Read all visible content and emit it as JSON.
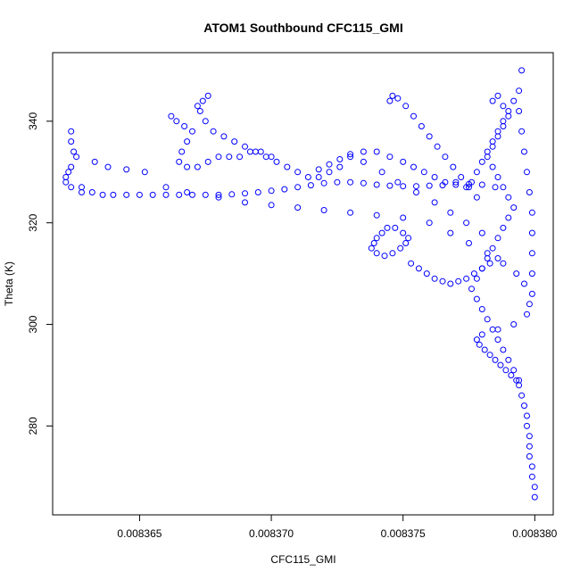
{
  "chart_data": {
    "type": "scatter",
    "title": "ATOM1 Southbound CFC115_GMI",
    "xlabel": "CFC115_GMI",
    "ylabel": "Theta (K)",
    "xlim": [
      0.0083617,
      0.0083807
    ],
    "ylim": [
      262.5,
      353.5
    ],
    "xticks": [
      0.008365,
      0.00837,
      0.008375,
      0.00838
    ],
    "xtick_labels": [
      "0.008365",
      "0.008370",
      "0.008375",
      "0.008380"
    ],
    "yticks": [
      280,
      300,
      320,
      340
    ],
    "ytick_labels": [
      "280",
      "300",
      "320",
      "340"
    ],
    "grid": false,
    "marker": "open-circle",
    "color": "#0000ff",
    "series": [
      {
        "points": [
          [
            0.00838,
            266
          ],
          [
            0.00838,
            268
          ],
          [
            0.0083799,
            270
          ],
          [
            0.0083799,
            272
          ],
          [
            0.0083798,
            274
          ],
          [
            0.0083798,
            276
          ],
          [
            0.0083798,
            278
          ],
          [
            0.0083797,
            280
          ],
          [
            0.0083797,
            282
          ],
          [
            0.0083796,
            284
          ],
          [
            0.0083795,
            286
          ],
          [
            0.0083794,
            288
          ],
          [
            0.0083793,
            289
          ],
          [
            0.0083791,
            290
          ],
          [
            0.0083789,
            291
          ],
          [
            0.0083787,
            292
          ],
          [
            0.0083785,
            293
          ],
          [
            0.0083783,
            294
          ],
          [
            0.0083781,
            295
          ],
          [
            0.0083779,
            296
          ],
          [
            0.0083778,
            297
          ],
          [
            0.008378,
            298
          ],
          [
            0.0083786,
            299
          ],
          [
            0.0083792,
            300
          ],
          [
            0.0083797,
            302
          ],
          [
            0.0083798,
            304
          ],
          [
            0.0083799,
            306
          ],
          [
            0.0083799,
            310
          ],
          [
            0.0083799,
            314
          ],
          [
            0.0083799,
            318
          ],
          [
            0.0083799,
            322
          ],
          [
            0.0083798,
            326
          ],
          [
            0.0083797,
            330
          ],
          [
            0.0083796,
            334
          ],
          [
            0.0083795,
            338
          ],
          [
            0.0083794,
            342
          ],
          [
            0.0083794,
            346
          ],
          [
            0.0083795,
            350
          ],
          [
            0.0083792,
            344
          ],
          [
            0.008379,
            342
          ],
          [
            0.0083788,
            340
          ],
          [
            0.0083786,
            338
          ],
          [
            0.0083784,
            336
          ],
          [
            0.0083782,
            334
          ],
          [
            0.008378,
            332
          ],
          [
            0.0083778,
            330
          ],
          [
            0.0083776,
            328
          ],
          [
            0.0083774,
            327
          ],
          [
            0.008377,
            328
          ],
          [
            0.0083766,
            328
          ],
          [
            0.0083762,
            329
          ],
          [
            0.0083758,
            330
          ],
          [
            0.0083754,
            331
          ],
          [
            0.008375,
            332
          ],
          [
            0.0083745,
            333
          ],
          [
            0.008374,
            334
          ],
          [
            0.0083735,
            334
          ],
          [
            0.008373,
            333
          ],
          [
            0.0083726,
            331
          ],
          [
            0.0083722,
            330
          ],
          [
            0.0083718,
            329
          ],
          [
            0.0083714,
            329
          ],
          [
            0.008371,
            330
          ],
          [
            0.0083706,
            331
          ],
          [
            0.0083702,
            332
          ],
          [
            0.0083698,
            333
          ],
          [
            0.0083694,
            334
          ],
          [
            0.008369,
            335
          ],
          [
            0.0083686,
            336
          ],
          [
            0.0083682,
            337
          ],
          [
            0.0083678,
            338
          ],
          [
            0.0083675,
            340
          ],
          [
            0.0083673,
            342
          ],
          [
            0.0083672,
            343
          ],
          [
            0.0083674,
            344
          ],
          [
            0.0083676,
            345
          ],
          [
            0.0083662,
            341
          ],
          [
            0.0083664,
            340
          ],
          [
            0.0083667,
            339
          ],
          [
            0.008367,
            338
          ],
          [
            0.0083668,
            336
          ],
          [
            0.0083666,
            334
          ],
          [
            0.0083665,
            332
          ],
          [
            0.0083668,
            331
          ],
          [
            0.0083672,
            331
          ],
          [
            0.0083676,
            332
          ],
          [
            0.008368,
            333
          ],
          [
            0.0083684,
            333
          ],
          [
            0.0083688,
            333
          ],
          [
            0.0083692,
            334
          ],
          [
            0.0083696,
            334
          ],
          [
            0.00837,
            333
          ],
          [
            0.0083624,
            338
          ],
          [
            0.0083624,
            336
          ],
          [
            0.0083625,
            334
          ],
          [
            0.0083626,
            333
          ],
          [
            0.0083624,
            331
          ],
          [
            0.0083623,
            330
          ],
          [
            0.0083622,
            329
          ],
          [
            0.0083622,
            328
          ],
          [
            0.0083624,
            327
          ],
          [
            0.0083628,
            326
          ],
          [
            0.0083632,
            326
          ],
          [
            0.0083636,
            325.5
          ],
          [
            0.008364,
            325.5
          ],
          [
            0.0083645,
            325.5
          ],
          [
            0.008365,
            325.5
          ],
          [
            0.0083655,
            325.5
          ],
          [
            0.008366,
            325.5
          ],
          [
            0.0083665,
            325.5
          ],
          [
            0.008367,
            325.5
          ],
          [
            0.0083675,
            325.5
          ],
          [
            0.008368,
            325.5
          ],
          [
            0.0083685,
            325.6
          ],
          [
            0.008369,
            325.8
          ],
          [
            0.0083695,
            326
          ],
          [
            0.00837,
            326.3
          ],
          [
            0.0083705,
            326.6
          ],
          [
            0.008371,
            327
          ],
          [
            0.0083715,
            327.4
          ],
          [
            0.008372,
            327.8
          ],
          [
            0.0083725,
            328
          ],
          [
            0.008373,
            328
          ],
          [
            0.0083735,
            327.8
          ],
          [
            0.008374,
            327.5
          ],
          [
            0.0083745,
            327.3
          ],
          [
            0.008375,
            327.2
          ],
          [
            0.0083755,
            327.2
          ],
          [
            0.008376,
            327.3
          ],
          [
            0.0083765,
            327.4
          ],
          [
            0.008377,
            327.5
          ],
          [
            0.0083775,
            327.6
          ],
          [
            0.008378,
            327.5
          ],
          [
            0.0083785,
            327
          ],
          [
            0.0083628,
            327
          ],
          [
            0.0083633,
            332
          ],
          [
            0.0083638,
            331
          ],
          [
            0.0083645,
            330.5
          ],
          [
            0.0083652,
            330
          ],
          [
            0.008366,
            327
          ],
          [
            0.0083668,
            326
          ],
          [
            0.008368,
            325
          ],
          [
            0.008369,
            324
          ],
          [
            0.00837,
            323.5
          ],
          [
            0.008371,
            323
          ],
          [
            0.008372,
            322.5
          ],
          [
            0.008373,
            322
          ],
          [
            0.008374,
            321.5
          ],
          [
            0.008375,
            321
          ],
          [
            0.008376,
            320
          ],
          [
            0.0083768,
            318
          ],
          [
            0.0083775,
            316
          ],
          [
            0.0083782,
            314
          ],
          [
            0.0083788,
            312
          ],
          [
            0.0083793,
            310
          ],
          [
            0.0083796,
            308
          ],
          [
            0.0083742,
            318
          ],
          [
            0.008374,
            317
          ],
          [
            0.0083739,
            316
          ],
          [
            0.0083738,
            315
          ],
          [
            0.008374,
            314
          ],
          [
            0.0083743,
            313.5
          ],
          [
            0.0083746,
            314
          ],
          [
            0.0083749,
            315
          ],
          [
            0.0083751,
            316
          ],
          [
            0.0083752,
            317
          ],
          [
            0.008375,
            318
          ],
          [
            0.0083747,
            319
          ],
          [
            0.0083744,
            319
          ],
          [
            0.0083753,
            312
          ],
          [
            0.0083756,
            311
          ],
          [
            0.0083759,
            310
          ],
          [
            0.0083762,
            309
          ],
          [
            0.0083765,
            308.5
          ],
          [
            0.0083768,
            308
          ],
          [
            0.0083771,
            308.5
          ],
          [
            0.0083774,
            309
          ],
          [
            0.0083777,
            310
          ],
          [
            0.008378,
            311
          ],
          [
            0.0083783,
            312
          ],
          [
            0.0083786,
            313
          ],
          [
            0.0083745,
            344
          ],
          [
            0.0083746,
            345
          ],
          [
            0.0083748,
            344.5
          ],
          [
            0.0083751,
            343
          ],
          [
            0.0083754,
            341
          ],
          [
            0.0083757,
            339
          ],
          [
            0.008376,
            337
          ],
          [
            0.0083763,
            335
          ],
          [
            0.0083766,
            333
          ],
          [
            0.0083769,
            331
          ],
          [
            0.0083772,
            329
          ],
          [
            0.0083775,
            327
          ],
          [
            0.0083778,
            325
          ],
          [
            0.0083784,
            344
          ],
          [
            0.0083786,
            345
          ],
          [
            0.0083788,
            343
          ],
          [
            0.008379,
            341
          ],
          [
            0.0083788,
            339
          ],
          [
            0.0083786,
            337
          ],
          [
            0.0083784,
            335
          ],
          [
            0.0083782,
            333
          ],
          [
            0.0083784,
            331
          ],
          [
            0.0083786,
            329
          ],
          [
            0.0083788,
            327
          ],
          [
            0.008379,
            325
          ],
          [
            0.0083792,
            323
          ],
          [
            0.008379,
            321
          ],
          [
            0.0083788,
            319
          ],
          [
            0.0083786,
            317
          ],
          [
            0.0083784,
            315
          ],
          [
            0.0083782,
            313
          ],
          [
            0.008378,
            311
          ],
          [
            0.0083778,
            309
          ],
          [
            0.0083776,
            307
          ],
          [
            0.0083778,
            305
          ],
          [
            0.008378,
            303
          ],
          [
            0.0083782,
            301
          ],
          [
            0.0083784,
            299
          ],
          [
            0.0083786,
            297
          ],
          [
            0.0083788,
            295
          ],
          [
            0.008379,
            293
          ],
          [
            0.0083792,
            291
          ],
          [
            0.0083794,
            289
          ],
          [
            0.0083718,
            330.5
          ],
          [
            0.0083722,
            331.5
          ],
          [
            0.0083726,
            332.5
          ],
          [
            0.008373,
            333.5
          ],
          [
            0.0083735,
            332
          ],
          [
            0.0083742,
            330
          ],
          [
            0.0083748,
            328
          ],
          [
            0.0083755,
            326
          ],
          [
            0.0083762,
            324
          ],
          [
            0.0083768,
            322
          ],
          [
            0.0083774,
            320
          ],
          [
            0.008378,
            318
          ]
        ]
      }
    ]
  }
}
